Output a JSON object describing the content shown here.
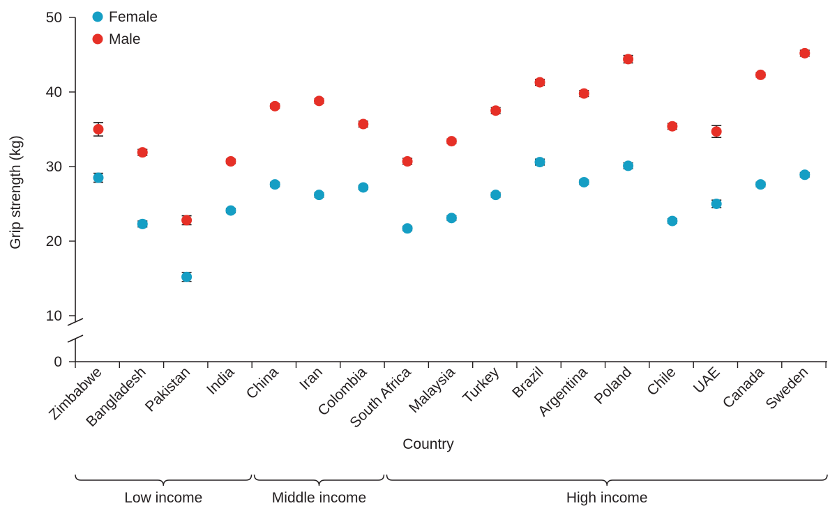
{
  "chart_data": {
    "type": "scatter",
    "ylabel": "Grip strength (kg)",
    "xlabel": "Country",
    "ylim": [
      0,
      50
    ],
    "y_axis_break": [
      0,
      10
    ],
    "yticks": [
      "0",
      "10",
      "20",
      "30",
      "40",
      "50"
    ],
    "categories": [
      "Zimbabwe",
      "Bangladesh",
      "Pakistan",
      "India",
      "China",
      "Iran",
      "Colombia",
      "South Africa",
      "Malaysia",
      "Turkey",
      "Brazil",
      "Argentina",
      "Poland",
      "Chile",
      "UAE",
      "Canada",
      "Sweden"
    ],
    "legend_position": "top-left",
    "series": [
      {
        "name": "Female",
        "color": "#159ec4",
        "values": [
          28.5,
          22.3,
          15.2,
          24.1,
          27.6,
          26.2,
          27.2,
          21.7,
          23.1,
          26.2,
          30.6,
          27.9,
          30.1,
          22.7,
          25.0,
          27.6,
          28.9
        ],
        "error": [
          0.6,
          0.4,
          0.6,
          0.3,
          0.3,
          0.3,
          0.3,
          0.3,
          0.3,
          0.3,
          0.4,
          0.3,
          0.4,
          0.3,
          0.5,
          0.3,
          0.3
        ]
      },
      {
        "name": "Male",
        "color": "#e63027",
        "values": [
          35.0,
          31.9,
          22.8,
          30.7,
          38.1,
          38.8,
          35.7,
          30.7,
          33.4,
          37.5,
          41.3,
          39.8,
          44.4,
          35.4,
          34.7,
          42.3,
          45.2
        ],
        "error": [
          0.9,
          0.4,
          0.6,
          0.3,
          0.3,
          0.3,
          0.4,
          0.4,
          0.3,
          0.4,
          0.4,
          0.4,
          0.5,
          0.4,
          0.8,
          0.3,
          0.4
        ]
      }
    ],
    "groups": [
      {
        "label": "Low income",
        "from": 0,
        "to": 3
      },
      {
        "label": "Middle income",
        "from": 4,
        "to": 6
      },
      {
        "label": "High income",
        "from": 7,
        "to": 16
      }
    ]
  }
}
